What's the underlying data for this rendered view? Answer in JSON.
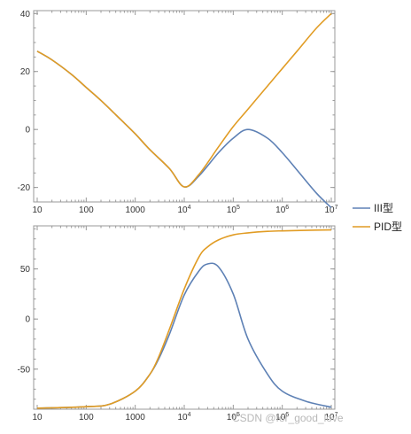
{
  "chart_data": [
    {
      "type": "line",
      "title": "",
      "xlabel": "",
      "ylabel": "",
      "x_scale": "log",
      "xlim": [
        10,
        10000000
      ],
      "ylim": [
        -25,
        41
      ],
      "grid": false,
      "legend": "right",
      "x_ticks": [
        {
          "value": 10,
          "label": "10"
        },
        {
          "value": 100,
          "label": "100"
        },
        {
          "value": 1000,
          "label": "1000"
        },
        {
          "value": 10000,
          "label": "10",
          "sup": "4"
        },
        {
          "value": 100000,
          "label": "10",
          "sup": "5"
        },
        {
          "value": 1000000,
          "label": "10",
          "sup": "6"
        },
        {
          "value": 10000000,
          "label": "10",
          "sup": "7"
        }
      ],
      "y_ticks": [
        {
          "value": -20,
          "label": "-20"
        },
        {
          "value": 0,
          "label": "0"
        },
        {
          "value": 20,
          "label": "20"
        },
        {
          "value": 40,
          "label": "40"
        }
      ],
      "series": [
        {
          "name": "III型",
          "color": "#5e81b5",
          "x": [
            10,
            20,
            50,
            100,
            200,
            500,
            1000,
            2000,
            5000,
            10000,
            20000,
            50000,
            100000,
            200000,
            500000,
            1000000,
            2000000,
            5000000,
            10000000
          ],
          "y": [
            27,
            24,
            19,
            14.5,
            10,
            3.5,
            -1.5,
            -7,
            -13.5,
            -19.8,
            -16,
            -8,
            -3,
            0,
            -3,
            -8,
            -14,
            -22,
            -27
          ]
        },
        {
          "name": "PID型",
          "color": "#e19c24",
          "x": [
            10,
            20,
            50,
            100,
            200,
            500,
            1000,
            2000,
            5000,
            10000,
            20000,
            50000,
            100000,
            200000,
            500000,
            1000000,
            2000000,
            5000000,
            10000000
          ],
          "y": [
            27,
            24,
            19,
            14.5,
            10,
            3.5,
            -1.5,
            -7,
            -13.5,
            -19.8,
            -15.5,
            -6,
            1,
            7,
            15,
            21,
            27,
            35,
            40
          ]
        }
      ]
    },
    {
      "type": "line",
      "title": "",
      "xlabel": "",
      "ylabel": "",
      "x_scale": "log",
      "xlim": [
        10,
        10000000
      ],
      "ylim": [
        -90,
        93
      ],
      "grid": false,
      "legend": "right",
      "x_ticks": [
        {
          "value": 10,
          "label": "10"
        },
        {
          "value": 100,
          "label": "100"
        },
        {
          "value": 1000,
          "label": "1000"
        },
        {
          "value": 10000,
          "label": "10",
          "sup": "4"
        },
        {
          "value": 100000,
          "label": "10",
          "sup": "5"
        },
        {
          "value": 1000000,
          "label": "10",
          "sup": "6"
        },
        {
          "value": 10000000,
          "label": "10",
          "sup": "7"
        }
      ],
      "y_ticks": [
        {
          "value": -50,
          "label": "-50"
        },
        {
          "value": 0,
          "label": "0"
        },
        {
          "value": 50,
          "label": "50"
        }
      ],
      "series": [
        {
          "name": "III型",
          "color": "#5e81b5",
          "x": [
            10,
            100,
            300,
            1000,
            2000,
            3000,
            5000,
            10000,
            20000,
            30000,
            50000,
            100000,
            200000,
            500000,
            1000000,
            3000000,
            10000000
          ],
          "y": [
            -89,
            -87.5,
            -85,
            -72,
            -55,
            -40,
            -15,
            24,
            48,
            55,
            52,
            25,
            -20,
            -55,
            -72,
            -82,
            -88
          ]
        },
        {
          "name": "PID型",
          "color": "#e19c24",
          "x": [
            10,
            100,
            300,
            1000,
            2000,
            3000,
            5000,
            10000,
            20000,
            30000,
            50000,
            100000,
            200000,
            500000,
            1000000,
            3000000,
            10000000
          ],
          "y": [
            -89,
            -87.5,
            -85,
            -72,
            -55,
            -38,
            -10,
            30,
            62,
            72,
            79,
            84,
            86,
            87.5,
            88,
            88.5,
            89
          ]
        }
      ]
    }
  ],
  "legend": {
    "items": [
      {
        "name": "III型",
        "color": "#5e81b5"
      },
      {
        "name": "PID型",
        "color": "#e19c24"
      }
    ]
  },
  "watermark": "CSDN @for_good_love"
}
